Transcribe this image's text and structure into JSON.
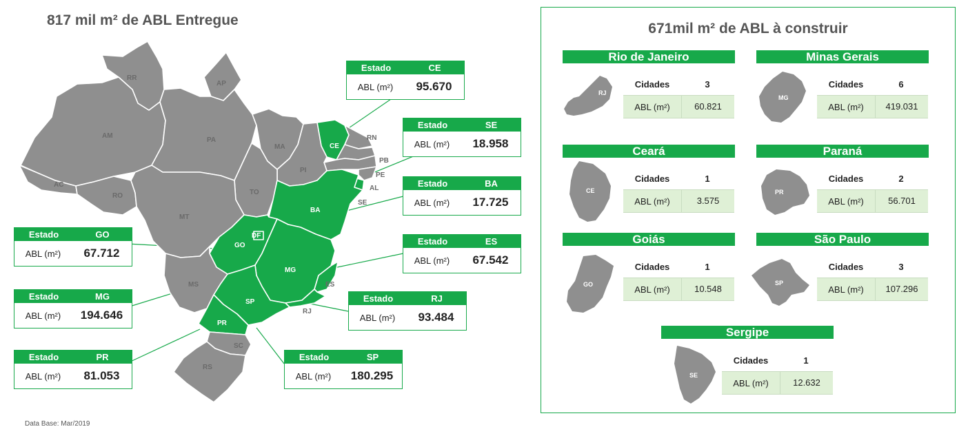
{
  "left_title": "817 mil m² de ABL Entregue",
  "footnote": "Data Base: Mar/2019",
  "map_labels": {
    "RR": "RR",
    "AP": "AP",
    "AM": "AM",
    "PA": "PA",
    "MA": "MA",
    "CE": "CE",
    "RN": "RN",
    "PB": "PB",
    "PE": "PE",
    "AL": "AL",
    "SE": "SE",
    "PI": "PI",
    "AC": "AC",
    "RO": "RO",
    "TO": "TO",
    "BA": "BA",
    "MT": "MT",
    "GO": "GO",
    "DF": "DF",
    "MG": "MG",
    "ES": "ES",
    "RJ": "RJ",
    "MS": "MS",
    "SP": "SP",
    "PR": "PR",
    "SC": "SC",
    "RS": "RS"
  },
  "delivered_boxes": [
    {
      "header": "Estado",
      "state": "CE",
      "abl_label": "ABL (m²)",
      "value": "95.670"
    },
    {
      "header": "Estado",
      "state": "SE",
      "abl_label": "ABL (m²)",
      "value": "18.958"
    },
    {
      "header": "Estado",
      "state": "BA",
      "abl_label": "ABL (m²)",
      "value": "17.725"
    },
    {
      "header": "Estado",
      "state": "GO",
      "abl_label": "ABL (m²)",
      "value": "67.712"
    },
    {
      "header": "Estado",
      "state": "ES",
      "abl_label": "ABL (m²)",
      "value": "67.542"
    },
    {
      "header": "Estado",
      "state": "MG",
      "abl_label": "ABL (m²)",
      "value": "194.646"
    },
    {
      "header": "Estado",
      "state": "RJ",
      "abl_label": "ABL (m²)",
      "value": "93.484"
    },
    {
      "header": "Estado",
      "state": "PR",
      "abl_label": "ABL (m²)",
      "value": "81.053"
    },
    {
      "header": "Estado",
      "state": "SP",
      "abl_label": "ABL (m²)",
      "value": "180.295"
    }
  ],
  "right_title": "671mil m² de ABL à construir",
  "to_build": [
    {
      "state": "Rio de Janeiro",
      "abbr": "RJ",
      "cities_label": "Cidades",
      "cities": "3",
      "abl_label": "ABL (m²)",
      "abl": "60.821"
    },
    {
      "state": "Minas Gerais",
      "abbr": "MG",
      "cities_label": "Cidades",
      "cities": "6",
      "abl_label": "ABL (m²)",
      "abl": "419.031"
    },
    {
      "state": "Ceará",
      "abbr": "CE",
      "cities_label": "Cidades",
      "cities": "1",
      "abl_label": "ABL (m²)",
      "abl": "3.575"
    },
    {
      "state": "Paraná",
      "abbr": "PR",
      "cities_label": "Cidades",
      "cities": "2",
      "abl_label": "ABL (m²)",
      "abl": "56.701"
    },
    {
      "state": "Goiás",
      "abbr": "GO",
      "cities_label": "Cidades",
      "cities": "1",
      "abl_label": "ABL (m²)",
      "abl": "10.548"
    },
    {
      "state": "São Paulo",
      "abbr": "SP",
      "cities_label": "Cidades",
      "cities": "3",
      "abl_label": "ABL (m²)",
      "abl": "107.296"
    },
    {
      "state": "Sergipe",
      "abbr": "SE",
      "cities_label": "Cidades",
      "cities": "1",
      "abl_label": "ABL (m²)",
      "abl": "12.632"
    }
  ],
  "colors": {
    "accent": "#17a94a",
    "state_grey": "#8f8f8f",
    "table_tint": "#dff0d6"
  }
}
